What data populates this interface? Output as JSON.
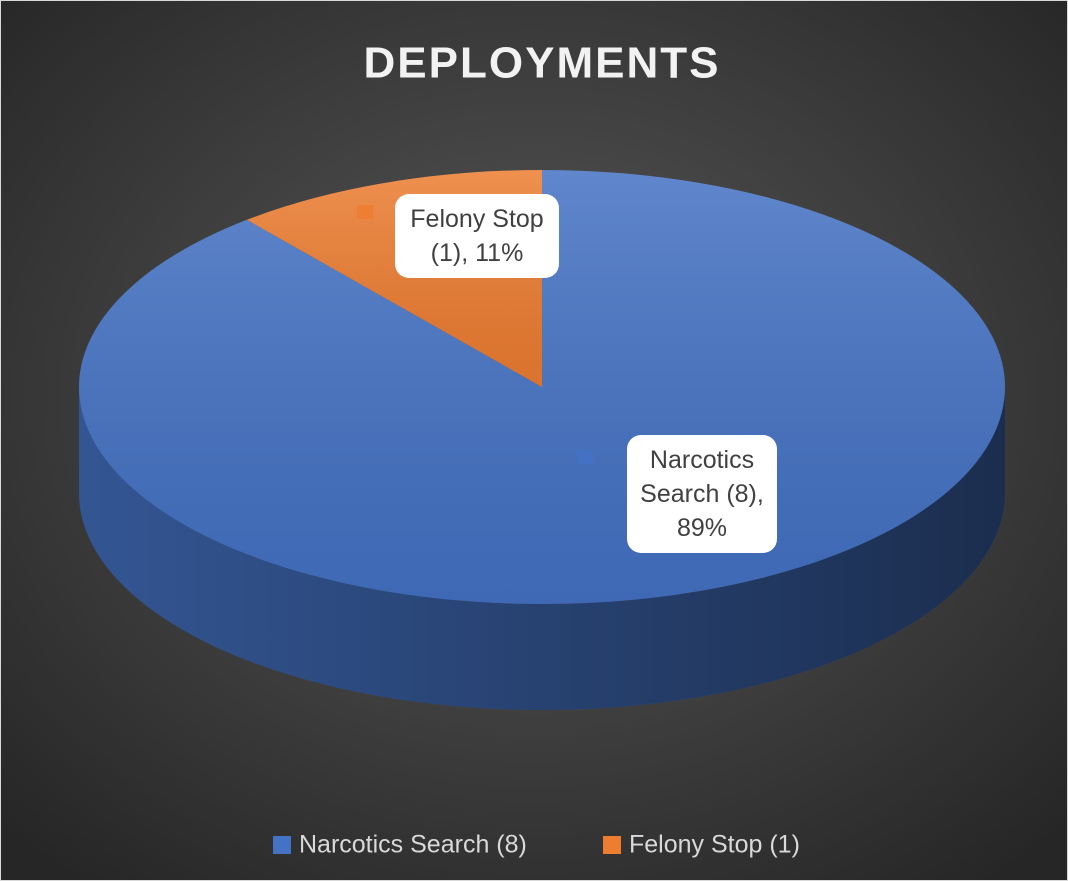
{
  "chart_data": {
    "type": "pie",
    "title": "DEPLOYMENTS",
    "categories": [
      "Narcotics Search (8)",
      "Felony Stop (1)"
    ],
    "values": [
      89,
      11
    ],
    "value_labels": [
      "Narcotics Search (8), 89%",
      "Felony Stop (1), 11%"
    ],
    "colors": [
      "#4472c4",
      "#ed7d31"
    ],
    "legend": "bottom"
  }
}
